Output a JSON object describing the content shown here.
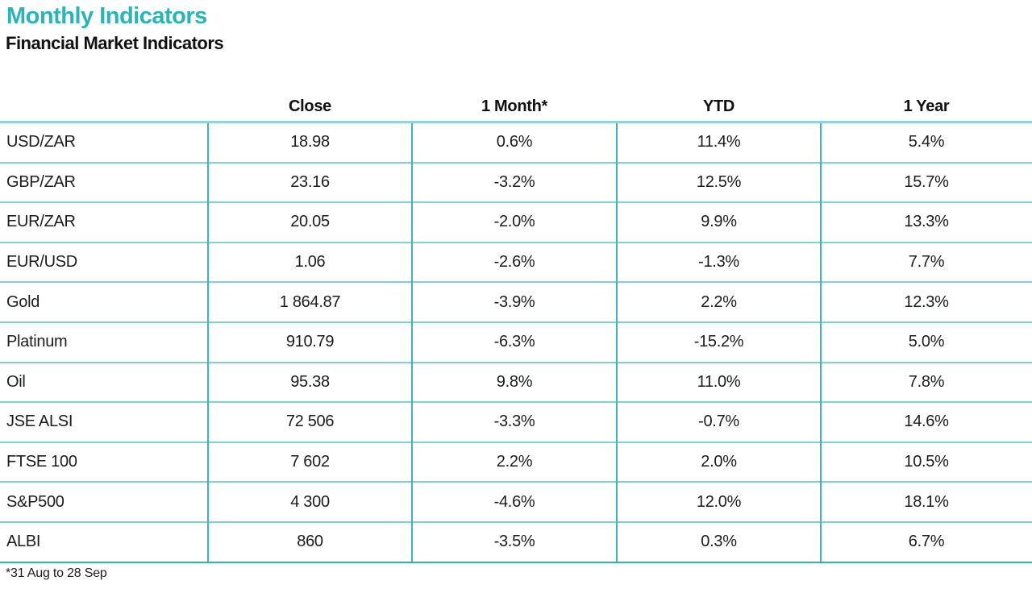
{
  "header": {
    "title": "Monthly Indicators",
    "subtitle": "Financial Market Indicators"
  },
  "table": {
    "columns": [
      "Close",
      "1 Month*",
      "YTD",
      "1 Year"
    ],
    "rows": [
      {
        "label": "USD/ZAR",
        "close": "18.98",
        "month1": "0.6%",
        "ytd": "11.4%",
        "year1": "5.4%"
      },
      {
        "label": "GBP/ZAR",
        "close": "23.16",
        "month1": "-3.2%",
        "ytd": "12.5%",
        "year1": "15.7%"
      },
      {
        "label": "EUR/ZAR",
        "close": "20.05",
        "month1": "-2.0%",
        "ytd": "9.9%",
        "year1": "13.3%"
      },
      {
        "label": "EUR/USD",
        "close": "1.06",
        "month1": "-2.6%",
        "ytd": "-1.3%",
        "year1": "7.7%"
      },
      {
        "label": "Gold",
        "close": "1 864.87",
        "month1": "-3.9%",
        "ytd": "2.2%",
        "year1": "12.3%"
      },
      {
        "label": "Platinum",
        "close": "910.79",
        "month1": "-6.3%",
        "ytd": "-15.2%",
        "year1": "5.0%"
      },
      {
        "label": "Oil",
        "close": "95.38",
        "month1": "9.8%",
        "ytd": "11.0%",
        "year1": "7.8%"
      },
      {
        "label": "JSE ALSI",
        "close": "72 506",
        "month1": "-3.3%",
        "ytd": "-0.7%",
        "year1": "14.6%"
      },
      {
        "label": "FTSE 100",
        "close": "7 602",
        "month1": "2.2%",
        "ytd": "2.0%",
        "year1": "10.5%"
      },
      {
        "label": "S&P500",
        "close": "4 300",
        "month1": "-4.6%",
        "ytd": "12.0%",
        "year1": "18.1%"
      },
      {
        "label": "ALBI",
        "close": "860",
        "month1": "-3.5%",
        "ytd": "0.3%",
        "year1": "6.7%"
      }
    ]
  },
  "footnote": "*31 Aug to 28 Sep",
  "colors": {
    "accent_teal": "#29b5b7",
    "grid_light": "#7fd1d3",
    "grid_dark": "#3ab7b9",
    "text": "#1c1c1c"
  }
}
